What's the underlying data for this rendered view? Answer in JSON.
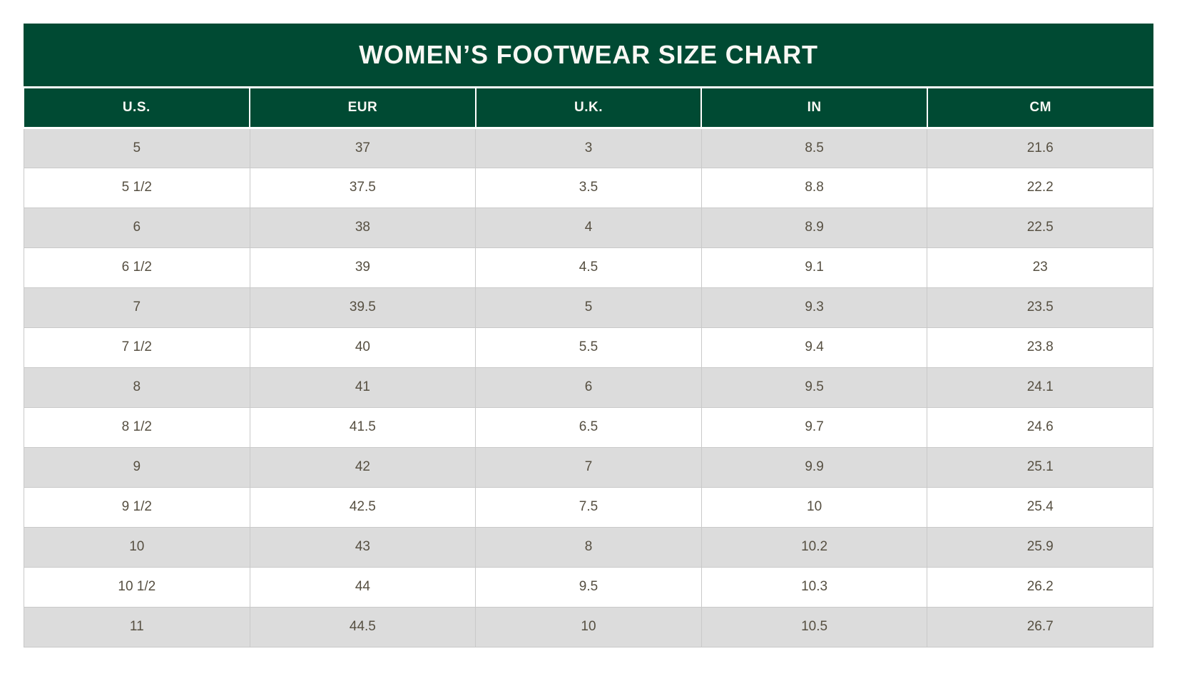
{
  "table": {
    "title": "WOMEN’S FOOTWEAR SIZE CHART",
    "columns": [
      "U.S.",
      "EUR",
      "U.K.",
      "IN",
      "CM"
    ],
    "rows": [
      [
        "5",
        "37",
        "3",
        "8.5",
        "21.6"
      ],
      [
        "5 1/2",
        "37.5",
        "3.5",
        "8.8",
        "22.2"
      ],
      [
        "6",
        "38",
        "4",
        "8.9",
        "22.5"
      ],
      [
        "6 1/2",
        "39",
        "4.5",
        "9.1",
        "23"
      ],
      [
        "7",
        "39.5",
        "5",
        "9.3",
        "23.5"
      ],
      [
        "7 1/2",
        "40",
        "5.5",
        "9.4",
        "23.8"
      ],
      [
        "8",
        "41",
        "6",
        "9.5",
        "24.1"
      ],
      [
        "8 1/2",
        "41.5",
        "6.5",
        "9.7",
        "24.6"
      ],
      [
        "9",
        "42",
        "7",
        "9.9",
        "25.1"
      ],
      [
        "9 1/2",
        "42.5",
        "7.5",
        "10",
        "25.4"
      ],
      [
        "10",
        "43",
        "8",
        "10.2",
        "25.9"
      ],
      [
        "10 1/2",
        "44",
        "9.5",
        "10.3",
        "26.2"
      ],
      [
        "11",
        "44.5",
        "10",
        "10.5",
        "26.7"
      ]
    ]
  },
  "colors": {
    "header_green": "#004A33",
    "title_text": "#F9F8F4",
    "row_alt": "#DCDCDC",
    "row_white": "#FFFFFF",
    "border": "#C9C9C9",
    "cell_text": "#564F41"
  }
}
